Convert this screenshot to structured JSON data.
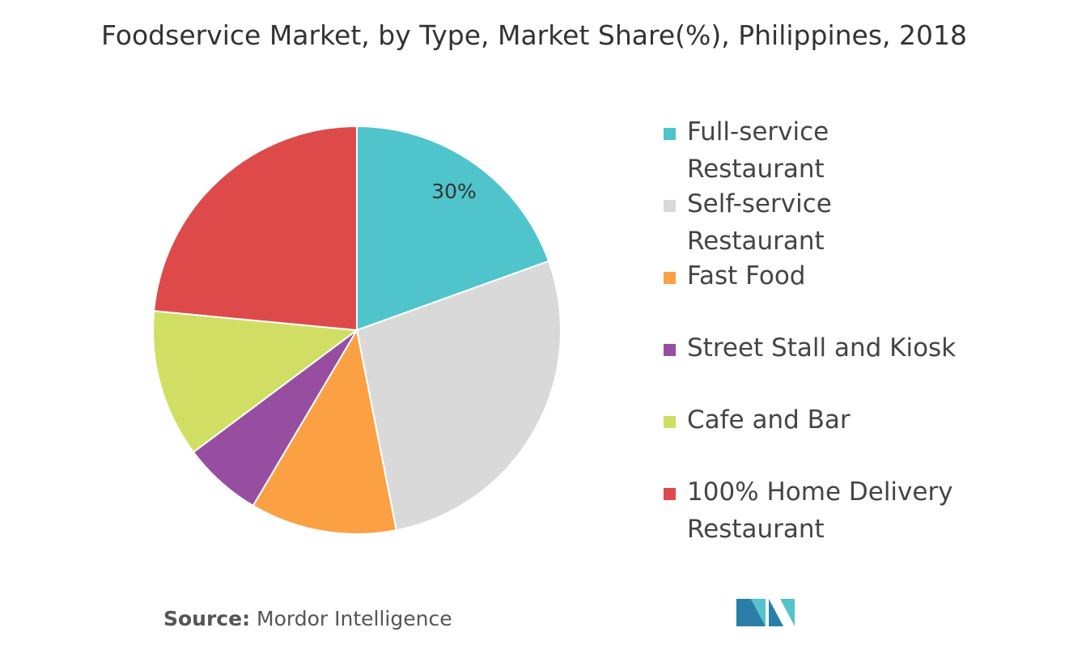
{
  "chart_data": {
    "type": "pie",
    "title": "Foodservice Market, by Type, Market Share(%), Philippines, 2018",
    "categories": [
      "Full-service Restaurant",
      "Self-service Restaurant",
      "Fast Food",
      "Street Stall and Kiosk",
      "Cafe and Bar",
      "100% Home Delivery Restaurant"
    ],
    "values": [
      19.5,
      27.4,
      11.6,
      6.3,
      11.7,
      23.5
    ],
    "colors": [
      "#4fc4ca",
      "#d9d9d9",
      "#fca044",
      "#984ea0",
      "#d0df63",
      "#de4a4a"
    ],
    "annotation": "30%",
    "source_label": "Source:",
    "source": "Mordor Intelligence"
  }
}
